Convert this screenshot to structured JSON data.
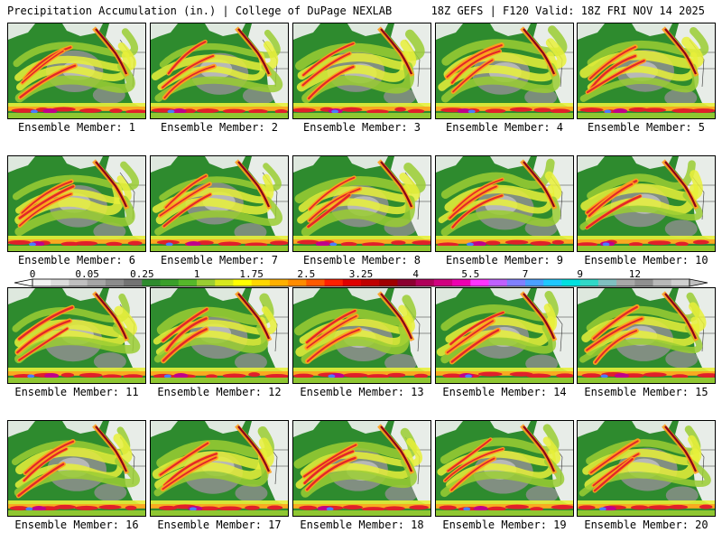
{
  "header": {
    "title_left": "Precipitation Accumulation (in.) | College of DuPage NEXLAB",
    "title_right": "18Z GEFS | F120 Valid: 18Z FRI NOV 14 2025"
  },
  "members": [
    {
      "caption": "Ensemble Member: 1"
    },
    {
      "caption": "Ensemble Member: 2"
    },
    {
      "caption": "Ensemble Member: 3"
    },
    {
      "caption": "Ensemble Member: 4"
    },
    {
      "caption": "Ensemble Member: 5"
    },
    {
      "caption": "Ensemble Member: 6"
    },
    {
      "caption": "Ensemble Member: 7"
    },
    {
      "caption": "Ensemble Member: 8"
    },
    {
      "caption": "Ensemble Member: 9"
    },
    {
      "caption": "Ensemble Member: 10"
    },
    {
      "caption": "Ensemble Member: 11"
    },
    {
      "caption": "Ensemble Member: 12"
    },
    {
      "caption": "Ensemble Member: 13"
    },
    {
      "caption": "Ensemble Member: 14"
    },
    {
      "caption": "Ensemble Member: 15"
    },
    {
      "caption": "Ensemble Member: 16"
    },
    {
      "caption": "Ensemble Member: 17"
    },
    {
      "caption": "Ensemble Member: 18"
    },
    {
      "caption": "Ensemble Member: 19"
    },
    {
      "caption": "Ensemble Member: 20"
    }
  ],
  "legend": {
    "labels": [
      "0",
      "0.05",
      "0.25",
      "1",
      "1.75",
      "2.5",
      "3.25",
      "4",
      "5.5",
      "7",
      "9",
      "12"
    ],
    "colors": [
      "#f4f4f4",
      "#dcdcdc",
      "#c0c0c0",
      "#a6a6a6",
      "#8c8c8c",
      "#737373",
      "#2e8b2e",
      "#3a9f2a",
      "#55b82a",
      "#9acd32",
      "#d8e81e",
      "#ffff00",
      "#ffd700",
      "#ffb000",
      "#ff8c00",
      "#ff5a00",
      "#ff2000",
      "#e00000",
      "#c00000",
      "#a00000",
      "#8b0030",
      "#b0005a",
      "#d10080",
      "#ee00b0",
      "#ff33ff",
      "#c060ff",
      "#8080ff",
      "#4aa0ff",
      "#20c8ff",
      "#00e0e0",
      "#30d8c8",
      "#80c0c0",
      "#a8a8a8",
      "#909090",
      "#b8b8b8",
      "#d0d0d0"
    ]
  },
  "map_colors": {
    "ocean_green": "#2e8b2e",
    "dark_green": "#237a23",
    "grey_light": "#bdbdbd",
    "grey_mid": "#8f8f8f",
    "land_white": "#f2f2f2",
    "yellow": "#e8f03a",
    "light_green": "#9acd32",
    "orange": "#ff9f1c",
    "red": "#e0202a",
    "dark_red": "#8b0018",
    "magenta": "#c0008a",
    "blue": "#4a7dff"
  }
}
